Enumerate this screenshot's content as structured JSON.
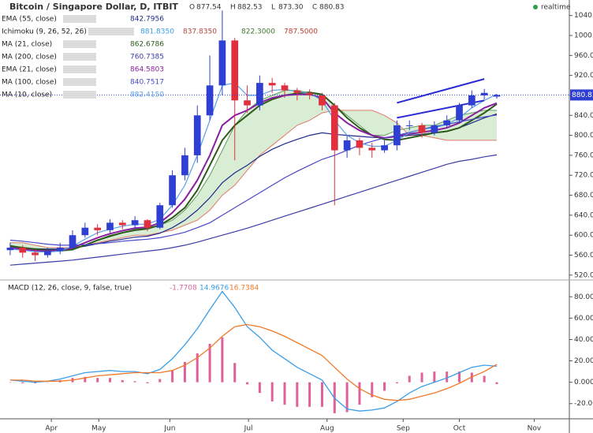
{
  "chart_data": [
    {
      "type": "candlestick",
      "title": "Bitcoin / Singapore Dollar, D, ITBIT",
      "header": [
        {
          "label": "O",
          "value": 877.54
        },
        {
          "label": "H",
          "value": 882.53
        },
        {
          "label": "L",
          "value": 873.3,
          "value_label": "873.30"
        },
        {
          "label": "C",
          "value": 880.83
        }
      ],
      "status": "realtime",
      "x": [
        0,
        1,
        2,
        3,
        4,
        5,
        6,
        7,
        8,
        9,
        10,
        11,
        12,
        13,
        14,
        15,
        16,
        17,
        18,
        19,
        20,
        21,
        22,
        23,
        24,
        25,
        26,
        27,
        28,
        29,
        30,
        31,
        32,
        33,
        34,
        35,
        36,
        37,
        38,
        39
      ],
      "open": [
        570,
        575,
        565,
        560,
        568,
        575,
        600,
        615,
        610,
        625,
        620,
        630,
        615,
        660,
        720,
        760,
        840,
        900,
        990,
        870,
        860,
        905,
        900,
        890,
        885,
        880,
        860,
        770,
        790,
        775,
        770,
        780,
        820,
        820,
        805,
        820,
        830,
        860,
        880,
        877.54
      ],
      "high": [
        585,
        580,
        570,
        575,
        585,
        610,
        625,
        622,
        632,
        630,
        638,
        632,
        665,
        730,
        775,
        860,
        960,
        1050,
        995,
        900,
        920,
        915,
        905,
        895,
        892,
        885,
        865,
        800,
        795,
        785,
        790,
        830,
        830,
        825,
        828,
        840,
        865,
        890,
        893,
        882.53
      ],
      "low": [
        560,
        555,
        548,
        555,
        562,
        570,
        595,
        600,
        605,
        612,
        612,
        608,
        612,
        655,
        710,
        745,
        830,
        880,
        750,
        845,
        850,
        885,
        875,
        870,
        872,
        850,
        660,
        755,
        760,
        755,
        765,
        770,
        810,
        795,
        800,
        815,
        825,
        855,
        872,
        873.3
      ],
      "close": [
        575,
        565,
        560,
        568,
        575,
        600,
        615,
        610,
        625,
        620,
        630,
        615,
        660,
        720,
        760,
        840,
        900,
        990,
        870,
        860,
        905,
        900,
        890,
        885,
        880,
        860,
        770,
        790,
        775,
        770,
        780,
        820,
        820,
        805,
        820,
        830,
        860,
        880,
        885,
        880.83
      ],
      "up_color": "#2f3fd1",
      "down_color": "#e0303d",
      "series": [
        {
          "name": "EMA (55, close)",
          "color": "#1f2a8a",
          "value_label": "842.7956",
          "values": [
            575,
            574,
            573,
            572,
            572,
            574,
            578,
            583,
            588,
            592,
            596,
            598,
            604,
            615,
            630,
            650,
            675,
            705,
            725,
            740,
            758,
            772,
            783,
            792,
            800,
            805,
            802,
            800,
            798,
            796,
            795,
            797,
            800,
            802,
            805,
            808,
            815,
            825,
            835,
            842.7956
          ]
        },
        {
          "name": "MA (21, close)",
          "color": "#2d5a1b",
          "value_label": "862.6786",
          "values": [
            578,
            575,
            572,
            570,
            569,
            572,
            580,
            590,
            598,
            605,
            610,
            613,
            620,
            635,
            655,
            690,
            740,
            790,
            820,
            840,
            860,
            872,
            880,
            884,
            886,
            882,
            860,
            835,
            815,
            800,
            792,
            790,
            795,
            800,
            805,
            808,
            815,
            830,
            845,
            862.6786
          ]
        },
        {
          "name": "MA (200, close)",
          "color": "#3c3ca8",
          "value_label": "760.7385",
          "values": [
            540,
            542,
            544,
            546,
            548,
            550,
            553,
            556,
            559,
            562,
            565,
            568,
            571,
            575,
            580,
            586,
            593,
            600,
            607,
            614,
            622,
            630,
            638,
            646,
            654,
            662,
            670,
            678,
            686,
            694,
            702,
            710,
            718,
            726,
            734,
            742,
            748,
            752,
            757,
            760.7385
          ]
        },
        {
          "name": "EMA (21, close)",
          "color": "#8a1fa0",
          "value_label": "864.5803",
          "values": [
            575,
            572,
            569,
            568,
            569,
            575,
            585,
            595,
            603,
            609,
            614,
            616,
            625,
            645,
            672,
            710,
            760,
            820,
            840,
            850,
            865,
            875,
            880,
            882,
            882,
            875,
            845,
            825,
            810,
            800,
            795,
            798,
            803,
            806,
            810,
            815,
            825,
            840,
            855,
            864.5803
          ]
        },
        {
          "name": "MA (100, close)",
          "color": "#4848c8",
          "value_label": "840.7517",
          "values": [
            590,
            588,
            585,
            582,
            580,
            580,
            581,
            583,
            585,
            588,
            590,
            592,
            595,
            600,
            606,
            615,
            625,
            640,
            655,
            670,
            685,
            700,
            715,
            728,
            740,
            752,
            760,
            770,
            780,
            788,
            795,
            800,
            806,
            812,
            818,
            822,
            827,
            832,
            837,
            840.7517
          ]
        },
        {
          "name": "MA (10, close)",
          "color": "#5aa0e8",
          "value_label": "882.4150",
          "values": [
            572,
            570,
            567,
            566,
            568,
            578,
            592,
            605,
            612,
            618,
            622,
            622,
            632,
            660,
            700,
            760,
            830,
            900,
            905,
            880,
            880,
            890,
            892,
            888,
            884,
            870,
            830,
            800,
            785,
            778,
            778,
            790,
            805,
            812,
            815,
            822,
            835,
            855,
            870,
            882.415
          ]
        }
      ],
      "ichimoku": {
        "name": "Ichimoku (9, 26, 52, 26)",
        "value_labels": [
          "881.8350",
          "837.8350",
          "822.3000",
          "787.5000"
        ],
        "label_colors": [
          "#3a9ee8",
          "#b0453a",
          "#3b7a2a",
          "#c0392b"
        ],
        "span_a_color": "#5da05a",
        "span_b_color": "#e07a6a",
        "fill_color": "#c8e6c0",
        "span_a": [
          580,
          575,
          570,
          568,
          568,
          570,
          580,
          590,
          600,
          605,
          612,
          615,
          620,
          630,
          650,
          680,
          720,
          770,
          820,
          850,
          870,
          880,
          890,
          890,
          885,
          880,
          860,
          840,
          820,
          800,
          800,
          810,
          815,
          820,
          820,
          830,
          840,
          845,
          850,
          850
        ],
        "span_b": [
          585,
          585,
          580,
          575,
          575,
          575,
          580,
          585,
          590,
          595,
          600,
          600,
          605,
          610,
          620,
          630,
          650,
          680,
          700,
          730,
          760,
          780,
          800,
          820,
          830,
          845,
          850,
          850,
          850,
          850,
          840,
          825,
          800,
          800,
          795,
          790,
          790,
          790,
          790,
          790
        ]
      },
      "trendlines": [
        {
          "color": "#2a2ad6",
          "x": [
            31,
            38
          ],
          "values": [
            865,
            913
          ]
        },
        {
          "color": "#2a2ad6",
          "x": [
            31,
            38
          ],
          "values": [
            835,
            870
          ]
        }
      ],
      "xlim": [
        -0.5,
        44.5
      ],
      "xticks": [
        {
          "value": 3.3,
          "label": "Apr"
        },
        {
          "value": 7.1,
          "label": "May"
        },
        {
          "value": 12.8,
          "label": "Jun"
        },
        {
          "value": 19.1,
          "label": "Jul"
        },
        {
          "value": 25.4,
          "label": "Aug"
        },
        {
          "value": 31.5,
          "label": "Sep"
        },
        {
          "value": 36,
          "label": "Oct"
        },
        {
          "value": 42,
          "label": "Nov"
        }
      ],
      "ylim": [
        515,
        1060
      ],
      "yticks": [
        {
          "value": 520,
          "label": "520.00"
        },
        {
          "value": 560,
          "label": "560.00"
        },
        {
          "value": 600,
          "label": "600.00"
        },
        {
          "value": 640,
          "label": "640.00"
        },
        {
          "value": 680,
          "label": "680.00"
        },
        {
          "value": 720,
          "label": "720.00"
        },
        {
          "value": 760,
          "label": "760.00"
        },
        {
          "value": 800,
          "label": "800.00"
        },
        {
          "value": 840,
          "label": "840.00"
        },
        {
          "value": 880,
          "label": "880.00"
        },
        {
          "value": 920,
          "label": "920.00"
        },
        {
          "value": 960,
          "label": "960.00"
        },
        {
          "value": 1000,
          "label": "1000.00"
        },
        {
          "value": 1040,
          "label": "1040.00"
        }
      ]
    },
    {
      "type": "macd",
      "title": "MACD (12, 26, close, 9, false, true)",
      "series": [
        {
          "kind": "histogram",
          "color": "#e0609a",
          "value_label": "-1.7708",
          "values": [
            0,
            -1,
            -1,
            0,
            2,
            4,
            5,
            4,
            4,
            2,
            1,
            -1,
            3,
            11,
            19,
            27,
            36,
            42,
            18,
            -2,
            -10,
            -18,
            -21,
            -23,
            -23,
            -23,
            -29,
            -28,
            -21,
            -14,
            -8,
            -1,
            6,
            9,
            10,
            10,
            10,
            9,
            6,
            -1.7708
          ]
        },
        {
          "kind": "line",
          "color": "#3a9ee8",
          "value_label": "14.9676",
          "values": [
            2,
            1,
            0,
            1,
            3,
            6,
            9,
            10,
            11,
            10,
            10,
            8,
            12,
            22,
            35,
            50,
            68,
            85,
            70,
            52,
            42,
            30,
            22,
            14,
            8,
            2,
            -15,
            -25,
            -27,
            -26,
            -24,
            -18,
            -10,
            -4,
            0,
            4,
            9,
            14,
            16,
            14.9676
          ]
        },
        {
          "kind": "line",
          "color": "#f07a2a",
          "value_label": "16.7384",
          "values": [
            2,
            2,
            1,
            1,
            1,
            2,
            4,
            6,
            7,
            8,
            9,
            9,
            9,
            11,
            16,
            23,
            32,
            43,
            52,
            54,
            52,
            48,
            43,
            37,
            31,
            25,
            14,
            3,
            -6,
            -12,
            -16,
            -17,
            -16,
            -13,
            -10,
            -6,
            -1,
            5,
            10,
            16.7384
          ]
        }
      ],
      "ylim": [
        -32,
        92
      ],
      "yticks": [
        {
          "value": -20,
          "label": "-20.0000"
        },
        {
          "value": 0,
          "label": "0.0000"
        },
        {
          "value": 20,
          "label": "20.0000"
        },
        {
          "value": 40,
          "label": "40.0000"
        },
        {
          "value": 60,
          "label": "60.0000"
        },
        {
          "value": 80,
          "label": "80.0000"
        }
      ]
    }
  ]
}
